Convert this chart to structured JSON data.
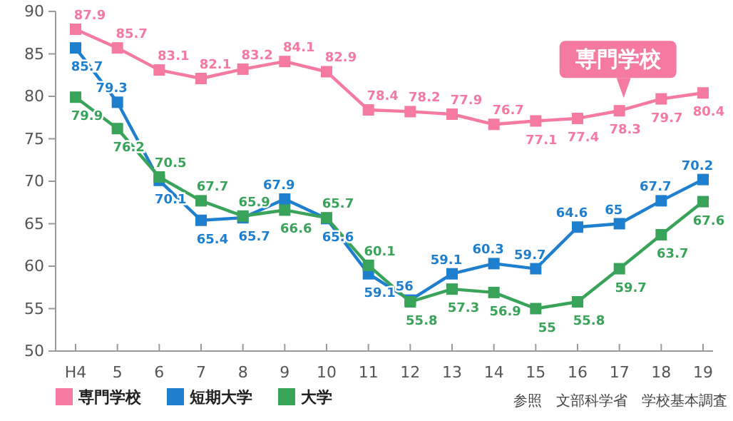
{
  "chart_data": {
    "type": "line",
    "categories": [
      "H4",
      "5",
      "6",
      "7",
      "8",
      "9",
      "10",
      "11",
      "12",
      "13",
      "14",
      "15",
      "16",
      "17",
      "18",
      "19"
    ],
    "ylim": [
      50,
      90
    ],
    "yticks": [
      50,
      55,
      60,
      65,
      70,
      75,
      80,
      85,
      90
    ],
    "grid": false,
    "marker": "square",
    "line_style": "solid",
    "legend": "bottom left",
    "data_labels": true,
    "series": [
      {
        "name": "専門学校",
        "color": "#f47aa0",
        "values": [
          87.9,
          85.7,
          83.1,
          82.1,
          83.2,
          84.1,
          82.9,
          78.4,
          78.2,
          77.9,
          76.7,
          77.1,
          77.4,
          78.3,
          79.7,
          80.4
        ]
      },
      {
        "name": "短期大学",
        "color": "#1f7fcf",
        "values": [
          85.7,
          79.3,
          70.1,
          65.4,
          65.7,
          67.9,
          65.6,
          59.1,
          56,
          59.1,
          60.3,
          59.7,
          64.6,
          65,
          67.7,
          70.2
        ]
      },
      {
        "name": "大学",
        "color": "#3aa35a",
        "values": [
          79.9,
          76.2,
          70.5,
          67.7,
          65.9,
          66.6,
          65.7,
          60.1,
          55.8,
          57.3,
          56.9,
          55,
          55.8,
          59.7,
          63.7,
          67.6
        ]
      }
    ],
    "annotations": [
      {
        "text": "専門学校",
        "x": "17",
        "y": 78.3
      },
      "参照　文部科学省　学校基本調査"
    ]
  }
}
